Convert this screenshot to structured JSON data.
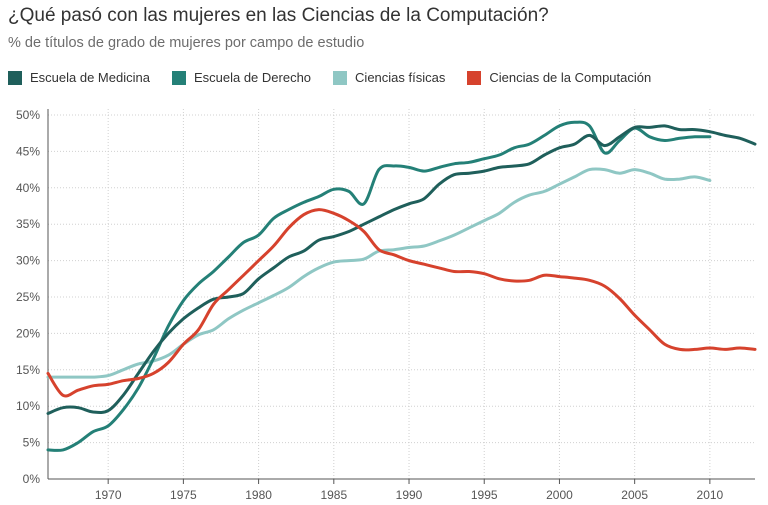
{
  "header": {
    "title": "¿Qué pasó con las mujeres en las Ciencias de la Computación?",
    "subtitle": "% de títulos de grado de mujeres por campo de estudio"
  },
  "chart_data": {
    "type": "line",
    "title": "¿Qué pasó con las mujeres en las Ciencias de la Computación?",
    "subtitle": "% de títulos de grado de mujeres por campo de estudio",
    "xlabel": "",
    "ylabel": "",
    "xlim": [
      1966,
      2013
    ],
    "ylim": [
      0,
      50
    ],
    "x_ticks": [
      1970,
      1975,
      1980,
      1985,
      1990,
      1995,
      2000,
      2005,
      2010
    ],
    "y_ticks": [
      0,
      5,
      10,
      15,
      20,
      25,
      30,
      35,
      40,
      45,
      50
    ],
    "y_tick_labels": [
      "0%",
      "5%",
      "10%",
      "15%",
      "20%",
      "25%",
      "30%",
      "35%",
      "40%",
      "45%",
      "50%"
    ],
    "grid": true,
    "legend_position": "top-left",
    "series": [
      {
        "name": "Escuela de Medicina",
        "color": "#1f5f5b",
        "x": [
          1966,
          1967,
          1968,
          1969,
          1970,
          1971,
          1972,
          1973,
          1974,
          1975,
          1976,
          1977,
          1978,
          1979,
          1980,
          1981,
          1982,
          1983,
          1984,
          1985,
          1986,
          1987,
          1988,
          1989,
          1990,
          1991,
          1992,
          1993,
          1994,
          1995,
          1996,
          1997,
          1998,
          1999,
          2000,
          2001,
          2002,
          2003,
          2004,
          2005,
          2006,
          2007,
          2008,
          2009,
          2010,
          2011,
          2012,
          2013
        ],
        "values": [
          9.0,
          9.8,
          9.8,
          9.2,
          9.4,
          11.5,
          14.5,
          17.5,
          20.0,
          22.0,
          23.5,
          24.7,
          25.0,
          25.5,
          27.5,
          29.0,
          30.5,
          31.3,
          32.8,
          33.3,
          34.0,
          35.0,
          36.0,
          37.0,
          37.8,
          38.5,
          40.5,
          41.8,
          42.0,
          42.3,
          42.8,
          43.0,
          43.3,
          44.5,
          45.5,
          46.0,
          47.2,
          45.8,
          47.0,
          48.3,
          48.3,
          48.5,
          48.0,
          48.0,
          47.7,
          47.2,
          46.8,
          46.0
        ]
      },
      {
        "name": "Escuela de Derecho",
        "color": "#248077",
        "x": [
          1966,
          1967,
          1968,
          1969,
          1970,
          1971,
          1972,
          1973,
          1974,
          1975,
          1976,
          1977,
          1978,
          1979,
          1980,
          1981,
          1982,
          1983,
          1984,
          1985,
          1986,
          1987,
          1988,
          1989,
          1990,
          1991,
          1992,
          1993,
          1994,
          1995,
          1996,
          1997,
          1998,
          1999,
          2000,
          2001,
          2002,
          2003,
          2004,
          2005,
          2006,
          2007,
          2008,
          2009,
          2010
        ],
        "values": [
          4.0,
          4.0,
          5.0,
          6.5,
          7.3,
          9.5,
          12.5,
          16.5,
          21.0,
          24.5,
          26.8,
          28.5,
          30.5,
          32.5,
          33.5,
          35.8,
          37.0,
          38.0,
          38.8,
          39.8,
          39.5,
          37.8,
          42.5,
          43.0,
          42.8,
          42.3,
          42.8,
          43.3,
          43.5,
          44.0,
          44.5,
          45.5,
          46.0,
          47.2,
          48.5,
          49.0,
          48.5,
          44.8,
          46.5,
          48.2,
          47.0,
          46.5,
          46.8,
          47.0,
          47.0
        ]
      },
      {
        "name": "Ciencias físicas",
        "color": "#8fc7c4",
        "x": [
          1966,
          1967,
          1968,
          1969,
          1970,
          1971,
          1972,
          1973,
          1974,
          1975,
          1976,
          1977,
          1978,
          1979,
          1980,
          1981,
          1982,
          1983,
          1984,
          1985,
          1986,
          1987,
          1988,
          1989,
          1990,
          1991,
          1992,
          1993,
          1994,
          1995,
          1996,
          1997,
          1998,
          1999,
          2000,
          2001,
          2002,
          2003,
          2004,
          2005,
          2006,
          2007,
          2008,
          2009,
          2010
        ],
        "values": [
          14.0,
          14.0,
          14.0,
          14.0,
          14.2,
          15.0,
          15.8,
          16.2,
          17.0,
          18.5,
          19.8,
          20.5,
          22.0,
          23.2,
          24.2,
          25.2,
          26.3,
          27.8,
          29.0,
          29.8,
          30.0,
          30.2,
          31.3,
          31.5,
          31.8,
          32.0,
          32.7,
          33.5,
          34.5,
          35.5,
          36.5,
          38.0,
          39.0,
          39.5,
          40.5,
          41.5,
          42.5,
          42.5,
          42.0,
          42.5,
          42.0,
          41.2,
          41.2,
          41.5,
          41.0
        ]
      },
      {
        "name": "Ciencias de la Computación",
        "color": "#d6422d",
        "x": [
          1966,
          1967,
          1968,
          1969,
          1970,
          1971,
          1972,
          1973,
          1974,
          1975,
          1976,
          1977,
          1978,
          1979,
          1980,
          1981,
          1982,
          1983,
          1984,
          1985,
          1986,
          1987,
          1988,
          1989,
          1990,
          1991,
          1992,
          1993,
          1994,
          1995,
          1996,
          1997,
          1998,
          1999,
          2000,
          2001,
          2002,
          2003,
          2004,
          2005,
          2006,
          2007,
          2008,
          2009,
          2010,
          2011,
          2012,
          2013
        ],
        "values": [
          14.5,
          11.5,
          12.2,
          12.8,
          13.0,
          13.5,
          13.8,
          14.5,
          16.0,
          18.5,
          20.5,
          24.0,
          26.0,
          28.0,
          30.0,
          32.0,
          34.5,
          36.3,
          37.0,
          36.5,
          35.5,
          34.0,
          31.5,
          30.8,
          30.0,
          29.5,
          29.0,
          28.5,
          28.5,
          28.2,
          27.5,
          27.2,
          27.3,
          28.0,
          27.8,
          27.6,
          27.3,
          26.5,
          24.8,
          22.5,
          20.5,
          18.5,
          17.8,
          17.8,
          18.0,
          17.8,
          18.0,
          17.8
        ]
      }
    ]
  }
}
